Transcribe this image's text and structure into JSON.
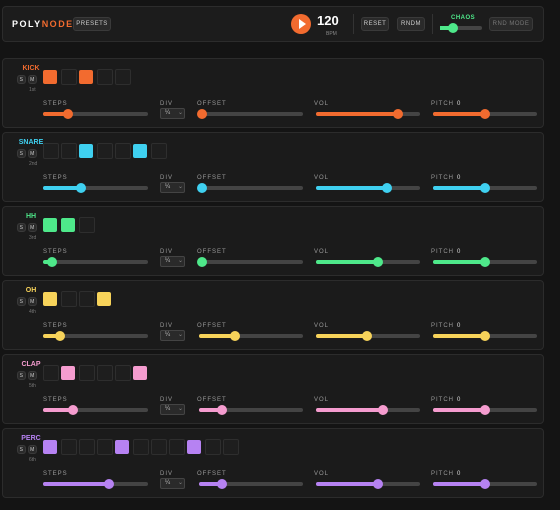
{
  "header": {
    "logo_a": "POLY",
    "logo_b": "NODE",
    "presets": "PRESETS",
    "bpm": 120,
    "bpm_unit": "BPM",
    "reset": "RESET",
    "rndm": "RNDM",
    "chaos": {
      "label": "CHAOS",
      "position": 30
    },
    "rnd_mode": "RND MODE"
  },
  "tracks": [
    {
      "name": "KICK",
      "color": "#f26b2f",
      "sub": "1st",
      "solo": "S",
      "mute": "M",
      "pattern": [
        true,
        false,
        true,
        false,
        false
      ],
      "steps": {
        "label": "STEPS",
        "position": 24
      },
      "div": {
        "label": "DIV",
        "value": "¼"
      },
      "offset": {
        "label": "OFFSET",
        "position": 3
      },
      "vol": {
        "label": "VOL",
        "position": 79
      },
      "pitch": {
        "label": "PITCH",
        "reading": 0,
        "position": 50
      }
    },
    {
      "name": "SNARE",
      "color": "#3fd0f0",
      "sub": "2nd",
      "solo": "S",
      "mute": "M",
      "pattern": [
        false,
        false,
        true,
        false,
        false,
        true,
        false
      ],
      "steps": {
        "label": "STEPS",
        "position": 36
      },
      "div": {
        "label": "DIV",
        "value": "¼"
      },
      "offset": {
        "label": "OFFSET",
        "position": 3
      },
      "vol": {
        "label": "VOL",
        "position": 68
      },
      "pitch": {
        "label": "PITCH",
        "reading": 0,
        "position": 50
      }
    },
    {
      "name": "HH",
      "color": "#4ee88a",
      "sub": "3rd",
      "solo": "S",
      "mute": "M",
      "pattern": [
        true,
        true,
        false
      ],
      "steps": {
        "label": "STEPS",
        "position": 9
      },
      "div": {
        "label": "DIV",
        "value": "¼"
      },
      "offset": {
        "label": "OFFSET",
        "position": 3
      },
      "vol": {
        "label": "VOL",
        "position": 60
      },
      "pitch": {
        "label": "PITCH",
        "reading": 0,
        "position": 50
      }
    },
    {
      "name": "OH",
      "color": "#f7d35a",
      "sub": "4th",
      "solo": "S",
      "mute": "M",
      "pattern": [
        true,
        false,
        false,
        true
      ],
      "steps": {
        "label": "STEPS",
        "position": 16
      },
      "div": {
        "label": "DIV",
        "value": "¼"
      },
      "offset": {
        "label": "OFFSET",
        "position": 35
      },
      "vol": {
        "label": "VOL",
        "position": 49
      },
      "pitch": {
        "label": "PITCH",
        "reading": 0,
        "position": 50
      }
    },
    {
      "name": "CLAP",
      "color": "#f59ccf",
      "sub": "5th",
      "solo": "S",
      "mute": "M",
      "pattern": [
        false,
        true,
        false,
        false,
        false,
        true
      ],
      "steps": {
        "label": "STEPS",
        "position": 29
      },
      "div": {
        "label": "DIV",
        "value": "¼"
      },
      "offset": {
        "label": "OFFSET",
        "position": 22
      },
      "vol": {
        "label": "VOL",
        "position": 64
      },
      "pitch": {
        "label": "PITCH",
        "reading": 0,
        "position": 50
      }
    },
    {
      "name": "PERC",
      "color": "#b682f2",
      "sub": "6th",
      "solo": "S",
      "mute": "M",
      "pattern": [
        true,
        false,
        false,
        false,
        true,
        false,
        false,
        false,
        true,
        false,
        false
      ],
      "steps": {
        "label": "STEPS",
        "position": 63
      },
      "div": {
        "label": "DIV",
        "value": "¼"
      },
      "offset": {
        "label": "OFFSET",
        "position": 22
      },
      "vol": {
        "label": "VOL",
        "position": 60
      },
      "pitch": {
        "label": "PITCH",
        "reading": 0,
        "position": 50
      }
    }
  ]
}
